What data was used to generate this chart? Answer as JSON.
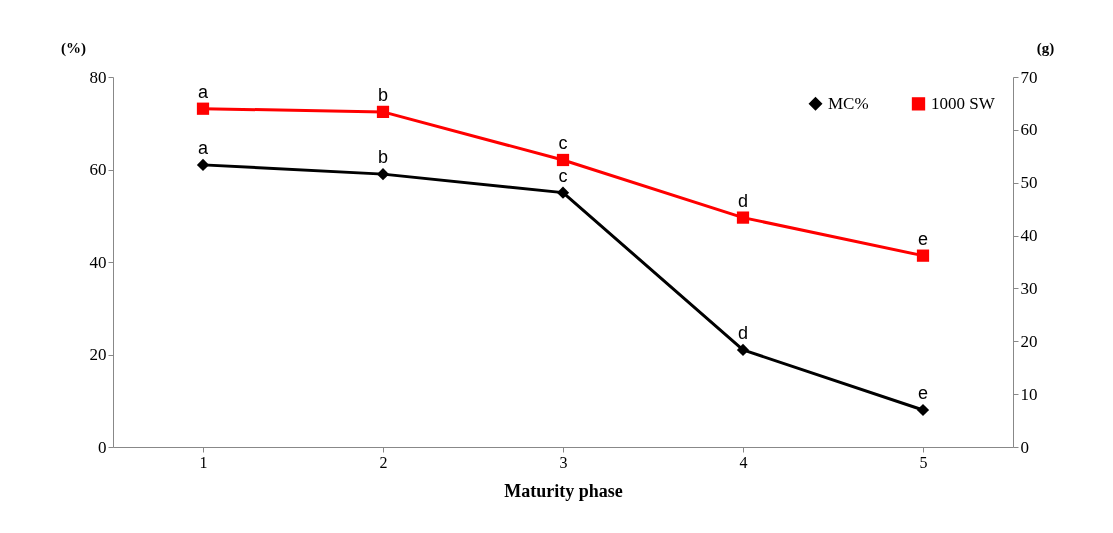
{
  "chart_data": {
    "type": "line",
    "xlabel": "Maturity phase",
    "ylabel": "(%)",
    "y2label": "(g)",
    "categories": [
      "1",
      "2",
      "3",
      "4",
      "5"
    ],
    "series": [
      {
        "name": "MC%",
        "color": "#000000",
        "marker": "diamond",
        "values": [
          61,
          59,
          55,
          21,
          8
        ]
      },
      {
        "name": "1000 SW",
        "color": "#ff0000",
        "marker": "square",
        "axis": "y2",
        "values": [
          64,
          63.4,
          54.3,
          43.4,
          36.2
        ]
      }
    ],
    "ylim": [
      0,
      80
    ],
    "yticks": [
      0,
      20,
      40,
      60,
      80
    ],
    "y2lim": [
      0,
      70
    ],
    "y2ticks": [
      0,
      10,
      20,
      30,
      40,
      50,
      60,
      70
    ],
    "grid": false,
    "legend": "top right",
    "annotations": [
      {
        "text": "a",
        "x": "1",
        "y": 61
      },
      {
        "text": "b",
        "x": "2",
        "y": 59
      },
      {
        "text": "c",
        "x": "3",
        "y": 55
      },
      {
        "text": "d",
        "x": "4",
        "y": 21
      },
      {
        "text": "e",
        "x": "5",
        "y": 8
      },
      {
        "text": "a",
        "x": "1",
        "y": 73.1
      },
      {
        "text": "b",
        "x": "2",
        "y": 72.5
      },
      {
        "text": "c",
        "x": "3",
        "y": 62.1
      },
      {
        "text": "d",
        "x": "4",
        "y": 49.6
      },
      {
        "text": "e",
        "x": "5",
        "y": 41.4
      }
    ]
  }
}
